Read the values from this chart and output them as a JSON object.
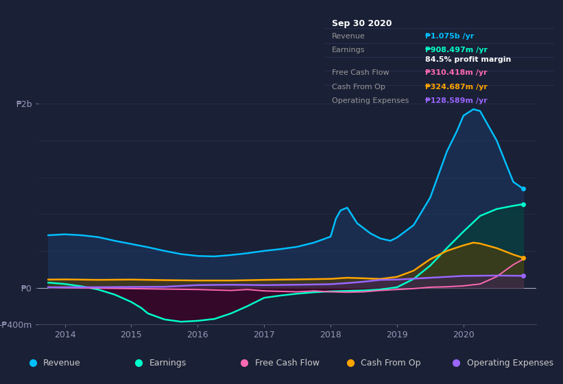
{
  "bg_color": "#1a2035",
  "chart_bg": "#1a2035",
  "grid_color": "#2a3252",
  "zero_line_color": "#aaaacc",
  "title_date": "Sep 30 2020",
  "tooltip_bg": "#0d1117",
  "tooltip_border": "#333355",
  "tooltip": {
    "Revenue": {
      "value": "₱1.075b /yr",
      "color": "#00bfff"
    },
    "Earnings": {
      "value": "₱908.497m /yr",
      "color": "#00ffcc"
    },
    "profit_margin": "84.5% profit margin",
    "Free Cash Flow": {
      "value": "₱310.418m /yr",
      "color": "#ff69b4"
    },
    "Cash From Op": {
      "value": "₱324.687m /yr",
      "color": "#ffa500"
    },
    "Operating Expenses": {
      "value": "₱128.589m /yr",
      "color": "#9966ff"
    }
  },
  "ylim": [
    -400,
    2000
  ],
  "yticks": [
    -400,
    0,
    2000
  ],
  "ytick_labels": [
    "-₱400m",
    "₱0",
    "₱2b"
  ],
  "xlim_start": 2013.6,
  "xlim_end": 2021.1,
  "xticks": [
    2014,
    2015,
    2016,
    2017,
    2018,
    2019,
    2020
  ],
  "legend_items": [
    {
      "label": "Revenue",
      "color": "#00bfff"
    },
    {
      "label": "Earnings",
      "color": "#00ffcc"
    },
    {
      "label": "Free Cash Flow",
      "color": "#ff69b4"
    },
    {
      "label": "Cash From Op",
      "color": "#ffa500"
    },
    {
      "label": "Operating Expenses",
      "color": "#9966ff"
    }
  ],
  "series": {
    "Revenue": {
      "color": "#00bfff",
      "fill_color": "#1a3a6a",
      "x": [
        2013.75,
        2014.0,
        2014.25,
        2014.5,
        2014.75,
        2015.0,
        2015.25,
        2015.5,
        2015.75,
        2016.0,
        2016.25,
        2016.5,
        2016.75,
        2017.0,
        2017.25,
        2017.5,
        2017.75,
        2018.0,
        2018.08,
        2018.15,
        2018.25,
        2018.4,
        2018.6,
        2018.75,
        2018.9,
        2019.0,
        2019.25,
        2019.5,
        2019.75,
        2019.9,
        2020.0,
        2020.15,
        2020.25,
        2020.5,
        2020.75,
        2020.9
      ],
      "y": [
        570,
        580,
        570,
        550,
        510,
        475,
        440,
        400,
        365,
        345,
        340,
        355,
        375,
        400,
        420,
        445,
        490,
        555,
        750,
        840,
        870,
        700,
        590,
        535,
        510,
        545,
        680,
        980,
        1480,
        1700,
        1870,
        1940,
        1920,
        1600,
        1150,
        1075
      ]
    },
    "Earnings": {
      "color": "#00ffcc",
      "fill_neg_color": "#3d0025",
      "fill_pos_color": "#004433",
      "x": [
        2013.75,
        2014.0,
        2014.25,
        2014.5,
        2014.75,
        2015.0,
        2015.15,
        2015.25,
        2015.5,
        2015.75,
        2016.0,
        2016.25,
        2016.5,
        2016.75,
        2017.0,
        2017.25,
        2017.5,
        2017.75,
        2018.0,
        2018.25,
        2018.5,
        2018.75,
        2019.0,
        2019.25,
        2019.5,
        2019.75,
        2020.0,
        2020.25,
        2020.5,
        2020.75,
        2020.9
      ],
      "y": [
        55,
        40,
        15,
        -20,
        -75,
        -155,
        -220,
        -280,
        -345,
        -370,
        -360,
        -340,
        -280,
        -200,
        -110,
        -85,
        -65,
        -50,
        -40,
        -35,
        -30,
        -20,
        5,
        95,
        240,
        430,
        610,
        780,
        855,
        890,
        908
      ]
    },
    "Free_Cash_Flow": {
      "color": "#ff69b4",
      "x": [
        2013.75,
        2014.0,
        2014.5,
        2015.0,
        2015.5,
        2016.0,
        2016.25,
        2016.5,
        2016.75,
        2017.0,
        2017.25,
        2017.5,
        2017.75,
        2018.0,
        2018.25,
        2018.5,
        2018.75,
        2019.0,
        2019.25,
        2019.5,
        2019.75,
        2020.0,
        2020.25,
        2020.5,
        2020.75,
        2020.9
      ],
      "y": [
        5,
        0,
        -5,
        -10,
        -15,
        -20,
        -25,
        -30,
        -20,
        -35,
        -40,
        -45,
        -35,
        -45,
        -50,
        -45,
        -30,
        -20,
        -10,
        5,
        10,
        20,
        40,
        120,
        250,
        310
      ]
    },
    "Cash_From_Op": {
      "color": "#ffa500",
      "fill_color": "#5a4000",
      "x": [
        2013.75,
        2014.0,
        2014.5,
        2015.0,
        2015.5,
        2016.0,
        2016.5,
        2017.0,
        2017.5,
        2018.0,
        2018.25,
        2018.5,
        2018.75,
        2019.0,
        2019.25,
        2019.5,
        2019.75,
        2020.0,
        2020.15,
        2020.25,
        2020.5,
        2020.75,
        2020.9
      ],
      "y": [
        88,
        90,
        85,
        88,
        82,
        78,
        78,
        85,
        90,
        96,
        108,
        102,
        95,
        118,
        185,
        310,
        400,
        460,
        490,
        480,
        430,
        360,
        325
      ]
    },
    "Operating_Expenses": {
      "color": "#9966ff",
      "fill_color": "#3d1a6a",
      "x": [
        2013.75,
        2014.0,
        2014.5,
        2015.0,
        2015.5,
        2016.0,
        2016.5,
        2017.0,
        2017.5,
        2018.0,
        2018.25,
        2018.5,
        2018.75,
        2019.0,
        2019.25,
        2019.5,
        2019.75,
        2020.0,
        2020.25,
        2020.5,
        2020.75,
        2020.9
      ],
      "y": [
        5,
        5,
        5,
        8,
        10,
        28,
        32,
        28,
        32,
        38,
        50,
        65,
        85,
        88,
        98,
        108,
        118,
        128,
        130,
        132,
        130,
        129
      ]
    }
  }
}
